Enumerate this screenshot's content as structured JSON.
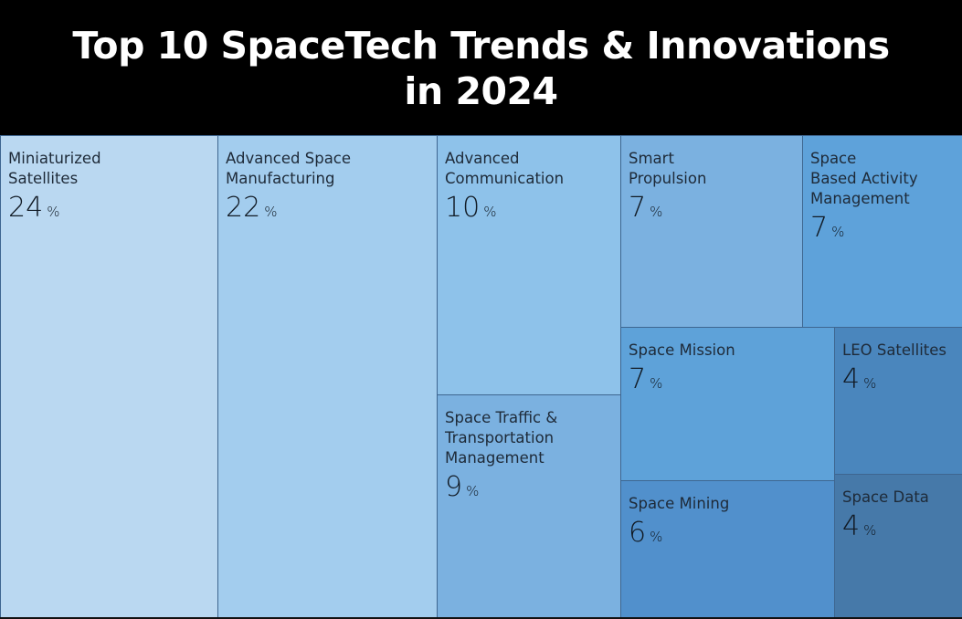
{
  "chart_data": {
    "type": "treemap",
    "title": "Top 10 SpaceTech Trends & Innovations in 2024",
    "title_lines": [
      "Top 10 SpaceTech Trends & Innovations",
      "in 2024"
    ],
    "unit": "%",
    "items": [
      {
        "name": "Miniaturized Satellites",
        "value": 24,
        "color": "#bad8f1"
      },
      {
        "name": "Advanced Space Manufacturing",
        "value": 22,
        "color": "#a3cdee"
      },
      {
        "name": "Advanced Communication",
        "value": 10,
        "color": "#8ec2ea"
      },
      {
        "name": "Space Traffic & Transportation Management",
        "value": 9,
        "color": "#7bb1e0"
      },
      {
        "name": "Smart Propulsion",
        "value": 7,
        "color": "#7bb1e0"
      },
      {
        "name": "Space Based Activity Management",
        "value": 7,
        "color": "#5ea2da"
      },
      {
        "name": "Space Mission",
        "value": 7,
        "color": "#5ea2d9"
      },
      {
        "name": "Space Mining",
        "value": 6,
        "color": "#5190cc"
      },
      {
        "name": "LEO Satellites",
        "value": 4,
        "color": "#4a86bd"
      },
      {
        "name": "Space Data",
        "value": 4,
        "color": "#4679a9"
      }
    ]
  },
  "labels": [
    "Miniaturized\nSatellites",
    "Advanced Space\nManufacturing",
    "Advanced\nCommunication",
    "Space Traffic &\nTransportation\nManagement",
    "Smart\nPropulsion",
    "Space\nBased Activity\nManagement",
    "Space Mission",
    "Space Mining",
    "LEO Satellites",
    "Space Data"
  ],
  "colors": {
    "title_bg": "#000000",
    "title_text": "#ffffff",
    "tile_border": "#3e6690"
  }
}
